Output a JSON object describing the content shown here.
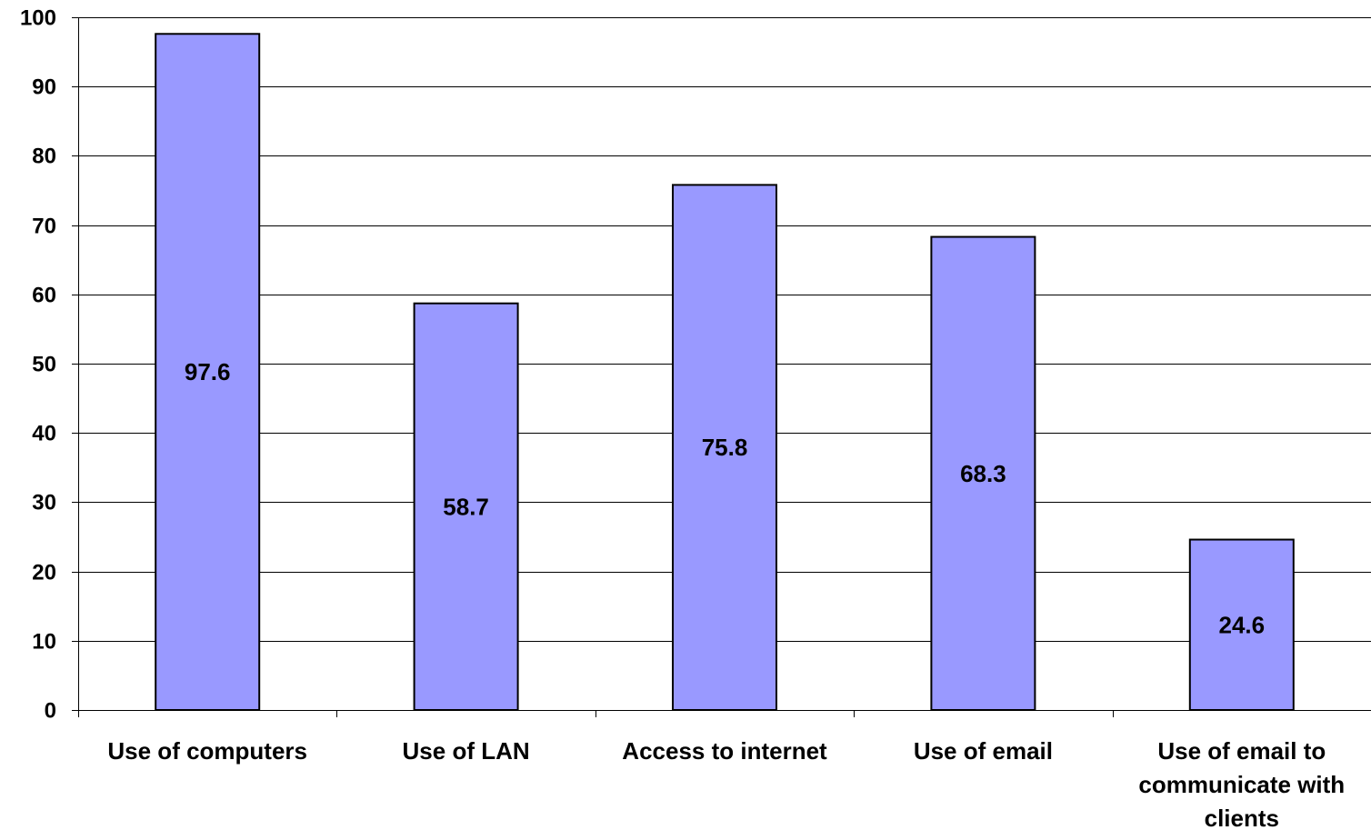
{
  "chart_data": {
    "type": "bar",
    "title": "",
    "xlabel": "",
    "ylabel": "",
    "categories": [
      "Use of computers",
      "Use of LAN",
      "Access to internet",
      "Use of email",
      "Use of email to communicate with clients"
    ],
    "category_label_lines": [
      [
        "Use of computers"
      ],
      [
        "Use of LAN"
      ],
      [
        "Access to internet"
      ],
      [
        "Use of email"
      ],
      [
        "Use of email to",
        "communicate with",
        "clients"
      ]
    ],
    "values": [
      97.6,
      58.7,
      75.8,
      68.3,
      24.6
    ],
    "data_labels": [
      "97.6",
      "58.7",
      "75.8",
      "68.3",
      "24.6"
    ],
    "ylim": [
      0,
      100
    ],
    "y_ticks": [
      0,
      10,
      20,
      30,
      40,
      50,
      60,
      70,
      80,
      90,
      100
    ],
    "grid": true,
    "legend": "none",
    "colors": {
      "bar_fill": "#9999ff",
      "bar_stroke": "#000000",
      "grid": "#000000",
      "axis": "#000000",
      "background": "#ffffff"
    }
  }
}
